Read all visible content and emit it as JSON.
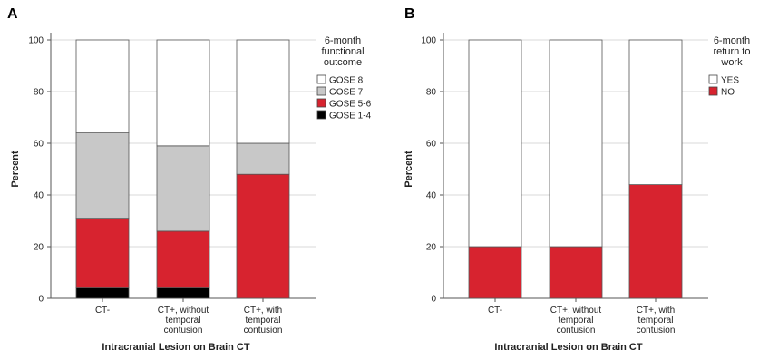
{
  "chart_data": [
    {
      "panel": "A",
      "type": "bar",
      "stacked": true,
      "categories": [
        "CT-",
        "CT+, without temporal contusion",
        "CT+, with temporal contusion"
      ],
      "category_lines": [
        [
          "CT-"
        ],
        [
          "CT+, without",
          "temporal",
          "contusion"
        ],
        [
          "CT+, with",
          "temporal",
          "contusion"
        ]
      ],
      "series": [
        {
          "name": "GOSE 1-4",
          "color": "#000000",
          "values": [
            4,
            4,
            0
          ]
        },
        {
          "name": "GOSE 5-6",
          "color": "#d7232f",
          "values": [
            27,
            22,
            48
          ]
        },
        {
          "name": "GOSE 7",
          "color": "#c8c8c8",
          "values": [
            33,
            33,
            12
          ]
        },
        {
          "name": "GOSE 8",
          "color": "#ffffff",
          "values": [
            36,
            41,
            40
          ]
        }
      ],
      "legend_order": [
        "GOSE 8",
        "GOSE 7",
        "GOSE 5-6",
        "GOSE 1-4"
      ],
      "legend_title_lines": [
        "6-month",
        "functional",
        "outcome"
      ],
      "xlabel": "Intracranial Lesion on Brain CT",
      "ylabel": "Percent",
      "ylim": [
        0,
        100
      ],
      "yticks": [
        0,
        20,
        40,
        60,
        80,
        100
      ],
      "grid": true,
      "legend_position": "right"
    },
    {
      "panel": "B",
      "type": "bar",
      "stacked": true,
      "categories": [
        "CT-",
        "CT+, without temporal contusion",
        "CT+, with temporal contusion"
      ],
      "category_lines": [
        [
          "CT-"
        ],
        [
          "CT+, without",
          "temporal",
          "contusion"
        ],
        [
          "CT+, with",
          "temporal",
          "contusion"
        ]
      ],
      "series": [
        {
          "name": "NO",
          "color": "#d7232f",
          "values": [
            20,
            20,
            44
          ]
        },
        {
          "name": "YES",
          "color": "#ffffff",
          "values": [
            80,
            80,
            56
          ]
        }
      ],
      "legend_order": [
        "YES",
        "NO"
      ],
      "legend_title_lines": [
        "6-month",
        "return to",
        "work"
      ],
      "xlabel": "Intracranial Lesion on Brain CT",
      "ylabel": "Percent",
      "ylim": [
        0,
        100
      ],
      "yticks": [
        0,
        20,
        40,
        60,
        80,
        100
      ],
      "grid": true,
      "legend_position": "right"
    }
  ]
}
